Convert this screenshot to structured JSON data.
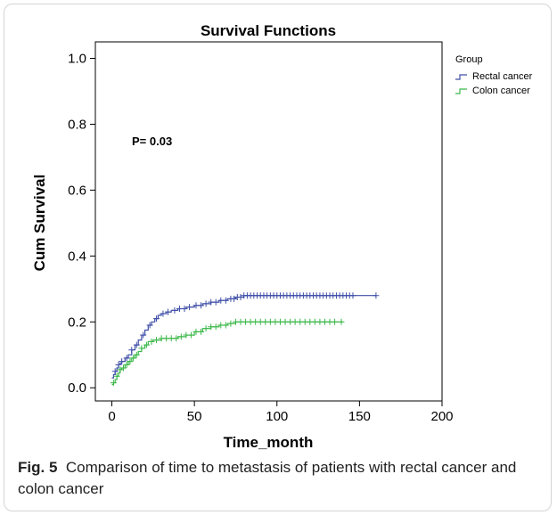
{
  "chart_data": {
    "type": "line",
    "subtype": "kaplan-meier-step",
    "title": "Survival Functions",
    "xlabel": "Time_month",
    "ylabel": "Cum Survival",
    "xlim": [
      -10,
      200
    ],
    "ylim": [
      -0.04,
      1.05
    ],
    "xticks": [
      0,
      50,
      100,
      150,
      200
    ],
    "yticks": [
      0.0,
      0.2,
      0.4,
      0.6,
      0.8,
      1.0
    ],
    "ytick_labels": [
      "0.0",
      "0.2",
      "0.4",
      "0.6",
      "0.8",
      "1.0"
    ],
    "grid": false,
    "legend": {
      "title": "Group",
      "placement": "outside-top-right"
    },
    "annotation": "P= 0.03",
    "series": [
      {
        "name": "Rectal cancer",
        "color": "#3f4fa8",
        "points": [
          [
            0,
            0.03
          ],
          [
            1,
            0.04
          ],
          [
            2,
            0.05
          ],
          [
            3,
            0.06
          ],
          [
            4,
            0.07
          ],
          [
            5,
            0.075
          ],
          [
            6,
            0.08
          ],
          [
            8,
            0.09
          ],
          [
            10,
            0.1
          ],
          [
            12,
            0.115
          ],
          [
            14,
            0.13
          ],
          [
            16,
            0.145
          ],
          [
            18,
            0.16
          ],
          [
            20,
            0.175
          ],
          [
            22,
            0.19
          ],
          [
            24,
            0.2
          ],
          [
            26,
            0.21
          ],
          [
            28,
            0.22
          ],
          [
            30,
            0.225
          ],
          [
            33,
            0.23
          ],
          [
            36,
            0.235
          ],
          [
            40,
            0.24
          ],
          [
            45,
            0.245
          ],
          [
            50,
            0.25
          ],
          [
            55,
            0.255
          ],
          [
            60,
            0.26
          ],
          [
            65,
            0.265
          ],
          [
            70,
            0.27
          ],
          [
            75,
            0.275
          ],
          [
            80,
            0.28
          ],
          [
            160,
            0.28
          ]
        ],
        "censored": [
          2,
          4,
          6,
          9,
          12,
          15,
          19,
          23,
          27,
          31,
          34,
          38,
          41,
          44,
          47,
          51,
          54,
          57,
          60,
          63,
          66,
          69,
          72,
          74,
          76,
          78,
          80,
          82,
          84,
          86,
          88,
          90,
          92,
          94,
          96,
          98,
          100,
          102,
          104,
          106,
          108,
          110,
          112,
          114,
          116,
          118,
          120,
          122,
          124,
          126,
          128,
          130,
          132,
          134,
          136,
          138,
          140,
          142,
          144,
          146,
          160
        ]
      },
      {
        "name": "Colon cancer",
        "color": "#3cb84a",
        "points": [
          [
            0,
            0.01
          ],
          [
            1,
            0.015
          ],
          [
            2,
            0.025
          ],
          [
            3,
            0.035
          ],
          [
            4,
            0.045
          ],
          [
            5,
            0.055
          ],
          [
            6,
            0.06
          ],
          [
            8,
            0.07
          ],
          [
            10,
            0.08
          ],
          [
            12,
            0.09
          ],
          [
            14,
            0.1
          ],
          [
            16,
            0.11
          ],
          [
            18,
            0.12
          ],
          [
            20,
            0.13
          ],
          [
            22,
            0.14
          ],
          [
            25,
            0.145
          ],
          [
            30,
            0.15
          ],
          [
            40,
            0.155
          ],
          [
            45,
            0.16
          ],
          [
            50,
            0.17
          ],
          [
            55,
            0.18
          ],
          [
            60,
            0.185
          ],
          [
            65,
            0.19
          ],
          [
            70,
            0.195
          ],
          [
            75,
            0.2
          ],
          [
            140,
            0.2
          ]
        ],
        "censored": [
          1,
          3,
          5,
          7,
          9,
          11,
          13,
          15,
          18,
          21,
          24,
          27,
          30,
          33,
          36,
          39,
          42,
          45,
          48,
          51,
          54,
          57,
          60,
          63,
          66,
          69,
          72,
          75,
          78,
          81,
          84,
          87,
          90,
          93,
          96,
          99,
          102,
          105,
          108,
          111,
          114,
          117,
          120,
          123,
          126,
          129,
          132,
          135,
          139
        ]
      }
    ]
  },
  "caption": {
    "fig_label": "Fig. 5",
    "text": "Comparison of time to metastasis of patients with rectal cancer and colon cancer"
  }
}
